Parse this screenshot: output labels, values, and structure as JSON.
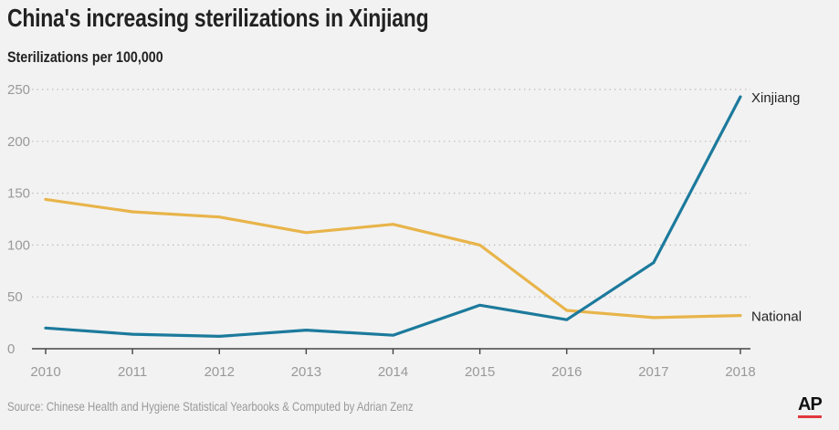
{
  "header": {
    "title": "China's increasing sterilizations in Xinjiang",
    "subtitle": "Sterilizations per 100,000"
  },
  "footer": {
    "source": "Source: Chinese Health and Hygiene Statistical Yearbooks & Computed by Adrian Zenz",
    "logo_text": "AP"
  },
  "colors": {
    "xinjiang": "#1c7a9c",
    "national": "#e8b44a",
    "axis": "#444444",
    "gridline": "#bdbdbd",
    "tick_label": "#999999",
    "series_label": "#222222"
  },
  "chart_data": {
    "type": "line",
    "title": "China's increasing sterilizations in Xinjiang",
    "ylabel": "Sterilizations per 100,000",
    "xlabel": "",
    "x": [
      2010,
      2011,
      2012,
      2013,
      2014,
      2015,
      2016,
      2017,
      2018
    ],
    "x_tick_labels": [
      "2010",
      "2011",
      "2012",
      "2013",
      "2014",
      "2015",
      "2016",
      "2017",
      "2018"
    ],
    "ylim": [
      0,
      250
    ],
    "y_ticks": [
      0,
      50,
      100,
      150,
      200,
      250
    ],
    "y_tick_labels": [
      "0",
      "50",
      "100",
      "150",
      "200",
      "250"
    ],
    "grid": true,
    "series": [
      {
        "name": "Xinjiang",
        "values": [
          20,
          14,
          12,
          18,
          13,
          42,
          28,
          83,
          243
        ]
      },
      {
        "name": "National",
        "values": [
          144,
          132,
          127,
          112,
          120,
          100,
          37,
          30,
          32
        ]
      }
    ],
    "source": "Source: Chinese Health and Hygiene Statistical Yearbooks & Computed by Adrian Zenz"
  }
}
